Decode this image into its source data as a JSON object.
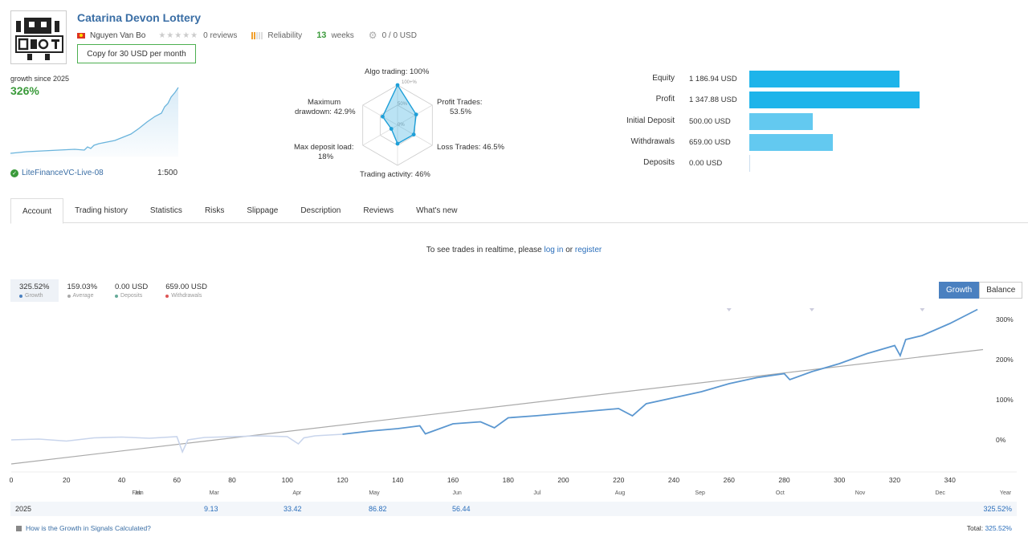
{
  "signal": {
    "title": "Catarina Devon Lottery",
    "author": "Nguyen Van Bo",
    "reviews": "0 reviews",
    "reliability": "Reliability",
    "weeks_num": "13",
    "weeks_label": "weeks",
    "subscribers": "0 / 0 USD",
    "copy_button": "Copy for 30 USD per month"
  },
  "growth": {
    "label": "growth since 2025",
    "value": "326%",
    "server": "LiteFinanceVC-Live-08",
    "leverage": "1:500"
  },
  "radar": {
    "algo": "Algo trading: 100%",
    "profit_trades": "Profit Trades:",
    "profit_trades_val": "53.5%",
    "loss_trades": "Loss Trades: 46.5%",
    "trading_activity": "Trading activity: 46%",
    "max_deposit_load": "Max deposit load:",
    "max_deposit_load_val": "18%",
    "max_drawdown": "Maximum",
    "max_drawdown_2": "drawdown: 42.9%",
    "ring_100": "100+%",
    "ring_50": "50%",
    "ring_0": "0%",
    "values": {
      "algo": 1.0,
      "profit": 0.535,
      "loss": 0.465,
      "activity": 0.46,
      "deposit_load": 0.18,
      "drawdown": 0.429
    }
  },
  "balance_bars": [
    {
      "label": "Equity",
      "value": "1 186.94 USD",
      "amount": 1186.94,
      "color": "#1eb4ea"
    },
    {
      "label": "Profit",
      "value": "1 347.88 USD",
      "amount": 1347.88,
      "color": "#1eb4ea"
    },
    {
      "label": "Initial Deposit",
      "value": "500.00 USD",
      "amount": 500.0,
      "color": "#63c9f0"
    },
    {
      "label": "Withdrawals",
      "value": "659.00 USD",
      "amount": 659.0,
      "color": "#63c9f0"
    },
    {
      "label": "Deposits",
      "value": "0.00 USD",
      "amount": 0.0,
      "color": "#63c9f0"
    }
  ],
  "tabs": [
    "Account",
    "Trading history",
    "Statistics",
    "Risks",
    "Slippage",
    "Description",
    "Reviews",
    "What's new"
  ],
  "realtime": {
    "prefix": "To see trades in realtime, please",
    "login": "log in",
    "or": "or",
    "register": "register"
  },
  "stats": [
    {
      "value": "325.52%",
      "label": "Growth",
      "color": "#4a80c0"
    },
    {
      "value": "159.03%",
      "label": "Average",
      "color": "#aaa"
    },
    {
      "value": "0.00 USD",
      "label": "Deposits",
      "color": "#6a9"
    },
    {
      "value": "659.00 USD",
      "label": "Withdrawals",
      "color": "#d55"
    }
  ],
  "toggle": {
    "growth": "Growth",
    "balance": "Balance"
  },
  "chart_data": {
    "type": "line",
    "x_ticks": [
      0,
      20,
      40,
      60,
      80,
      100,
      120,
      140,
      160,
      180,
      200,
      220,
      240,
      260,
      280,
      300,
      320,
      340
    ],
    "months": [
      "Jan",
      "Feb",
      "Mar",
      "Apr",
      "May",
      "Jun",
      "Jul",
      "Aug",
      "Sep",
      "Oct",
      "Nov",
      "Dec"
    ],
    "year_label": "Year",
    "y_ticks": [
      "0%",
      "100%",
      "200%",
      "300%"
    ],
    "ylim": [
      -60,
      340
    ],
    "xlim": [
      0,
      352
    ],
    "series": [
      {
        "name": "Growth",
        "x": [
          0,
          10,
          20,
          30,
          40,
          50,
          60,
          62,
          64,
          70,
          80,
          90,
          100,
          104,
          106,
          110,
          120,
          125,
          130,
          140,
          148,
          150,
          160,
          170,
          175,
          180,
          190,
          200,
          210,
          220,
          225,
          230,
          240,
          250,
          260,
          270,
          280,
          282,
          290,
          300,
          310,
          320,
          322,
          324,
          330,
          340,
          350
        ],
        "y": [
          0,
          2,
          -3,
          5,
          7,
          4,
          8,
          -30,
          0,
          6,
          8,
          10,
          8,
          -10,
          5,
          10,
          14,
          18,
          22,
          28,
          35,
          15,
          40,
          45,
          30,
          55,
          60,
          66,
          72,
          78,
          60,
          90,
          105,
          120,
          140,
          155,
          165,
          150,
          170,
          190,
          215,
          235,
          210,
          250,
          260,
          290,
          325
        ]
      },
      {
        "name": "Average",
        "x": [
          0,
          352
        ],
        "y": [
          -60,
          225
        ]
      }
    ]
  },
  "year_row": {
    "year": "2025",
    "feb": "9.13",
    "mar": "33.42",
    "apr": "86.82",
    "may": "56.44",
    "total_val": "325.52%"
  },
  "footer": {
    "question": "How is the Growth in Signals Calculated?",
    "total": "Total:",
    "total_val": "325.52%"
  }
}
